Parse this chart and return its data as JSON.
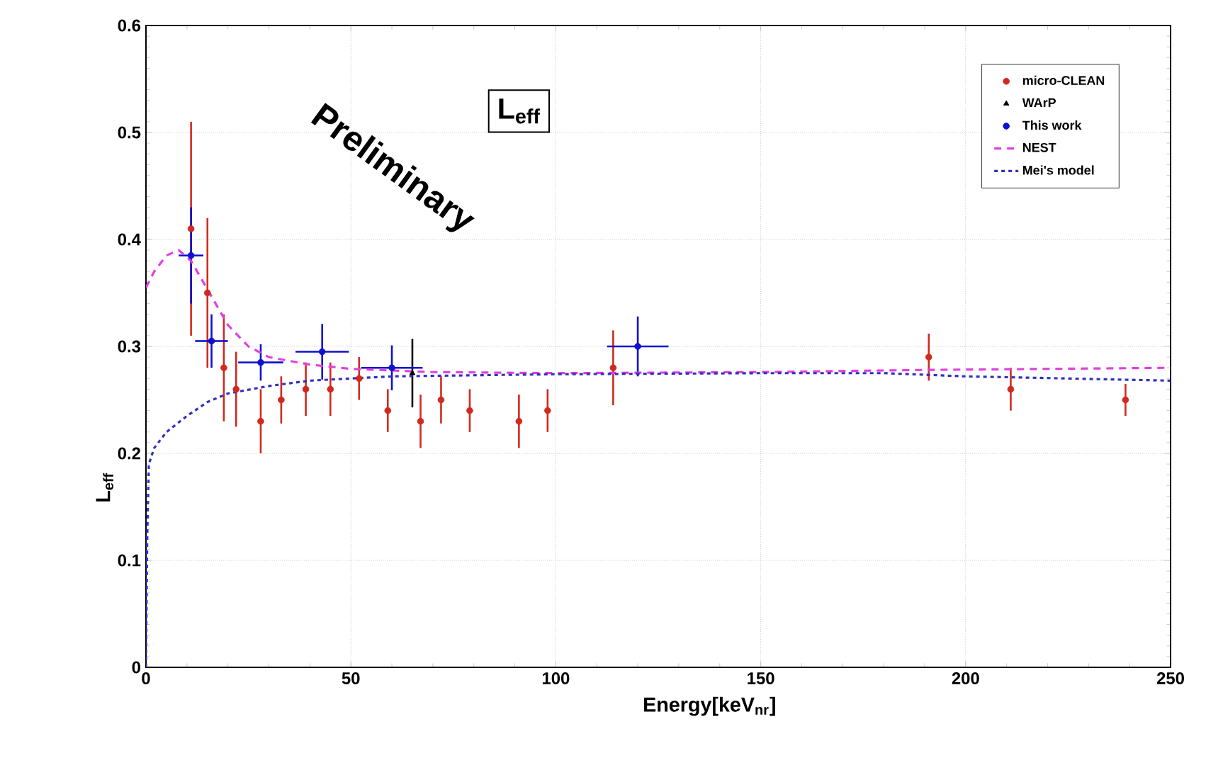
{
  "chart_data": {
    "type": "scatter",
    "xlabel": "Energy[keV$_{nr}$]",
    "ylabel": "L$_{eff}$",
    "xlim": [
      0,
      250
    ],
    "ylim": [
      0,
      0.6
    ],
    "xticks": [
      0,
      50,
      100,
      150,
      200,
      250
    ],
    "yticks": [
      0,
      0.1,
      0.2,
      0.3,
      0.4,
      0.5,
      0.6
    ],
    "grid": true,
    "legend": "top right",
    "annotations": [
      "Preliminary",
      "L$_{eff}$"
    ],
    "series": [
      {
        "name": "micro-CLEAN",
        "color": "#d02a1e",
        "marker": "circle",
        "x": [
          11,
          15,
          19,
          22,
          28,
          33,
          39,
          45,
          52,
          59,
          67,
          72,
          79,
          91,
          98,
          114,
          191,
          211,
          239
        ],
        "values": [
          0.41,
          0.35,
          0.28,
          0.26,
          0.23,
          0.25,
          0.26,
          0.26,
          0.27,
          0.24,
          0.23,
          0.25,
          0.24,
          0.23,
          0.24,
          0.28,
          0.29,
          0.26,
          0.25
        ],
        "errors": [
          0.1,
          0.07,
          0.05,
          0.035,
          0.03,
          0.022,
          0.025,
          0.025,
          0.02,
          0.02,
          0.025,
          0.022,
          0.02,
          0.025,
          0.02,
          0.035,
          0.022,
          0.02,
          0.015
        ]
      },
      {
        "name": "WArP",
        "color": "#000000",
        "marker": "triangle",
        "x": [
          65
        ],
        "values": [
          0.275
        ],
        "errors": [
          0.032
        ]
      },
      {
        "name": "This work",
        "color": "#1010d0",
        "marker": "circle",
        "x": [
          11,
          16,
          28,
          43,
          60,
          120
        ],
        "values": [
          0.385,
          0.305,
          0.285,
          0.295,
          0.28,
          0.3
        ],
        "errors": [
          0.045,
          0.025,
          0.017,
          0.026,
          0.021,
          0.028
        ],
        "xerrors": [
          3,
          4,
          5.5,
          6.5,
          7.5,
          7.5
        ]
      },
      {
        "name": "NEST",
        "type": "line",
        "color": "#e040e0",
        "line_style": "dashed",
        "x": [
          0,
          2,
          5,
          8,
          11,
          14,
          17,
          20,
          25,
          30,
          40,
          50,
          70,
          100,
          150,
          190,
          220,
          250
        ],
        "values": [
          0.355,
          0.37,
          0.385,
          0.39,
          0.38,
          0.36,
          0.34,
          0.32,
          0.3,
          0.29,
          0.283,
          0.279,
          0.276,
          0.275,
          0.276,
          0.278,
          0.279,
          0.28
        ]
      },
      {
        "name": "Mei's model",
        "type": "line",
        "color": "#3030c0",
        "line_style": "dotted",
        "x": [
          0,
          0.3,
          0.7,
          2,
          5,
          10,
          15,
          20,
          30,
          40,
          60,
          100,
          150,
          180,
          200,
          250
        ],
        "values": [
          0,
          0.12,
          0.19,
          0.205,
          0.22,
          0.235,
          0.248,
          0.256,
          0.263,
          0.268,
          0.272,
          0.274,
          0.275,
          0.275,
          0.272,
          0.268
        ]
      }
    ]
  }
}
